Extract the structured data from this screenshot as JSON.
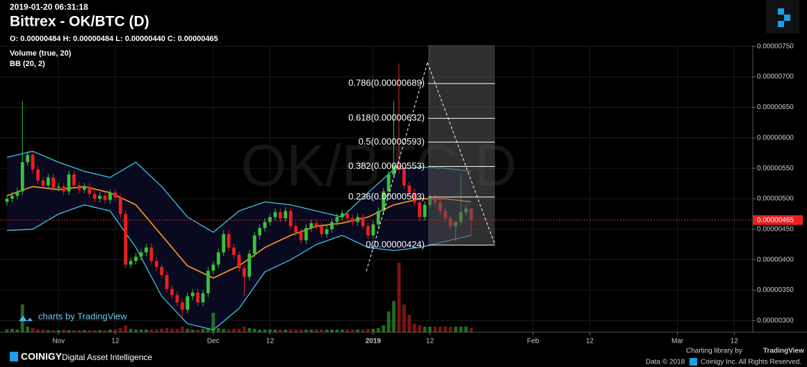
{
  "header": {
    "timestamp": "2019-01-20 06:31:18",
    "title": "Bittrex - OK/BTC (D)",
    "ohlc_text": "O: 0.00000484 H: 0.00000484 L: 0.00000440 C: 0.00000465",
    "indicators": [
      "Volume (true, 20)",
      "BB (20, 2)"
    ]
  },
  "watermark": "OK/BTC D",
  "tv_badge": "charts by TradingView",
  "footer": {
    "brand": "COINIGY",
    "tagline": "Digital Asset Intelligence",
    "library": "Charting library by",
    "library_brand": "TradingView",
    "copyright": "Data © 2018",
    "rights": "Coinigy Inc. All Rights Reserved."
  },
  "chart_data": {
    "type": "candlestick",
    "up_color": "#39c23a",
    "down_color": "#e8201f",
    "xlim": [
      -1.35,
      144.6
    ],
    "xticks": [
      {
        "value": 10,
        "label": "Nov"
      },
      {
        "value": 21,
        "label": "12"
      },
      {
        "value": 40,
        "label": "Dec"
      },
      {
        "value": 51,
        "label": "12"
      },
      {
        "value": 71,
        "label": "2019"
      },
      {
        "value": 82,
        "label": "12"
      },
      {
        "value": 102,
        "label": "Feb"
      },
      {
        "value": 113,
        "label": "12"
      },
      {
        "value": 130,
        "label": "Mar"
      },
      {
        "value": 141,
        "label": "12"
      }
    ],
    "ylim": [
      2.81e-06,
      7.52e-06
    ],
    "yticks": [
      {
        "value": 3e-06,
        "label": "0.00000300"
      },
      {
        "value": 3.5e-06,
        "label": "0.00000350"
      },
      {
        "value": 4e-06,
        "label": "0.00000400"
      },
      {
        "value": 4.5e-06,
        "label": "0.00000450"
      },
      {
        "value": 5e-06,
        "label": "0.00000500"
      },
      {
        "value": 5.5e-06,
        "label": "0.00000550"
      },
      {
        "value": 6e-06,
        "label": "0.00000600"
      },
      {
        "value": 6.5e-06,
        "label": "0.00000650"
      },
      {
        "value": 7e-06,
        "label": "0.00000700"
      },
      {
        "value": 7.5e-06,
        "label": "0.00000750"
      }
    ],
    "grid": true,
    "candles": {
      "open": [
        4.95e-06,
        5e-06,
        5.05e-06,
        5.12e-06,
        5.6e-06,
        5.72e-06,
        5.48e-06,
        5.3e-06,
        5.22e-06,
        5.35e-06,
        5.18e-06,
        5.2e-06,
        5.12e-06,
        5.4e-06,
        5.22e-06,
        5.15e-06,
        5.2e-06,
        5.08e-06,
        5e-06,
        5.05e-06,
        4.98e-06,
        5.1e-06,
        5.02e-06,
        4.75e-06,
        3.92e-06,
        3.98e-06,
        4.05e-06,
        4.12e-06,
        4.2e-06,
        3.98e-06,
        3.88e-06,
        3.75e-06,
        3.52e-06,
        3.42e-06,
        3.3e-06,
        3.18e-06,
        3.4e-06,
        3.46e-06,
        3.3e-06,
        3.45e-06,
        3.82e-06,
        3.92e-06,
        4.12e-06,
        4.42e-06,
        4.2e-06,
        4.08e-06,
        3.86e-06,
        3.72e-06,
        4.1e-06,
        4.4e-06,
        4.52e-06,
        4.62e-06,
        4.7e-06,
        4.78e-06,
        4.68e-06,
        4.8e-06,
        4.55e-06,
        4.45e-06,
        4.32e-06,
        4.52e-06,
        4.6e-06,
        4.55e-06,
        4.42e-06,
        4.5e-06,
        4.62e-06,
        4.7e-06,
        4.76e-06,
        4.68e-06,
        4.62e-06,
        4.7e-06,
        4.55e-06,
        4.4e-06,
        4.58e-06,
        4.8e-06,
        5.12e-06,
        5.4e-06,
        5.55e-06,
        5.48e-06,
        5.22e-06,
        5.1e-06,
        4.94e-06,
        4.7e-06,
        4.9e-06,
        5.02e-06,
        4.94e-06,
        4.8e-06,
        4.68e-06,
        4.55e-06,
        4.62e-06,
        4.78e-06,
        4.84e-06
      ],
      "high": [
        5.06e-06,
        5.11e-06,
        5.18e-06,
        6.6e-06,
        5.78e-06,
        5.78e-06,
        5.54e-06,
        5.36e-06,
        5.41e-06,
        5.41e-06,
        5.26e-06,
        5.26e-06,
        5.46e-06,
        5.46e-06,
        5.28e-06,
        5.26e-06,
        5.26e-06,
        5.14e-06,
        5.11e-06,
        5.11e-06,
        5.16e-06,
        5.16e-06,
        5.08e-06,
        4.81e-06,
        4.04e-06,
        4.11e-06,
        4.18e-06,
        4.26e-06,
        4.26e-06,
        4.04e-06,
        3.94e-06,
        3.81e-06,
        3.58e-06,
        3.48e-06,
        3.36e-06,
        3.46e-06,
        3.52e-06,
        3.52e-06,
        3.51e-06,
        3.88e-06,
        3.98e-06,
        4.18e-06,
        4.48e-06,
        4.48e-06,
        4.26e-06,
        4.14e-06,
        3.92e-06,
        4.16e-06,
        4.46e-06,
        4.58e-06,
        4.68e-06,
        4.76e-06,
        4.84e-06,
        4.84e-06,
        4.86e-06,
        4.86e-06,
        4.61e-06,
        4.51e-06,
        4.58e-06,
        4.66e-06,
        4.66e-06,
        4.61e-06,
        4.56e-06,
        4.68e-06,
        4.76e-06,
        4.82e-06,
        4.82e-06,
        4.74e-06,
        4.76e-06,
        4.76e-06,
        4.61e-06,
        4.64e-06,
        4.86e-06,
        5.18e-06,
        5.46e-06,
        6.6e-06,
        7.22e-06,
        5.54e-06,
        5.28e-06,
        5.16e-06,
        5e-06,
        4.96e-06,
        5.08e-06,
        5.08e-06,
        5e-06,
        4.86e-06,
        4.74e-06,
        4.61e-06,
        5.4e-06,
        4.9e-06,
        4.84e-06
      ],
      "low": [
        4.89e-06,
        4.94e-06,
        4.99e-06,
        5.06e-06,
        5.54e-06,
        5.42e-06,
        5.24e-06,
        5.16e-06,
        5.16e-06,
        5.12e-06,
        5.12e-06,
        5.06e-06,
        5.06e-06,
        5.16e-06,
        5.09e-06,
        5.09e-06,
        5.02e-06,
        4.94e-06,
        4.94e-06,
        4.92e-06,
        4.92e-06,
        4.96e-06,
        4.69e-06,
        3.86e-06,
        3.86e-06,
        3.92e-06,
        3.99e-06,
        4.06e-06,
        3.92e-06,
        3.82e-06,
        3.69e-06,
        3.46e-06,
        3.36e-06,
        3.24e-06,
        3.05e-06,
        3.12e-06,
        3.34e-06,
        3.24e-06,
        3.24e-06,
        3.39e-06,
        3.76e-06,
        3.86e-06,
        4.06e-06,
        4.14e-06,
        4.02e-06,
        3.8e-06,
        3.4e-06,
        3.66e-06,
        4.04e-06,
        4.34e-06,
        4.46e-06,
        4.56e-06,
        4.64e-06,
        4.62e-06,
        4.62e-06,
        4.49e-06,
        4.39e-06,
        4.26e-06,
        4.26e-06,
        4.46e-06,
        4.49e-06,
        4.36e-06,
        4.36e-06,
        4.44e-06,
        4.56e-06,
        4.64e-06,
        4.62e-06,
        4.56e-06,
        4.56e-06,
        4.49e-06,
        4.34e-06,
        4.34e-06,
        4.52e-06,
        4.74e-06,
        5.06e-06,
        5.34e-06,
        5.42e-06,
        5.16e-06,
        5.04e-06,
        4.88e-06,
        4.64e-06,
        4.64e-06,
        4.84e-06,
        4.88e-06,
        4.74e-06,
        4.62e-06,
        4.49e-06,
        4.3e-06,
        4.56e-06,
        4.72e-06,
        4.4e-06
      ],
      "close": [
        5e-06,
        5.05e-06,
        5.12e-06,
        5.6e-06,
        5.72e-06,
        5.48e-06,
        5.3e-06,
        5.22e-06,
        5.35e-06,
        5.18e-06,
        5.2e-06,
        5.12e-06,
        5.4e-06,
        5.22e-06,
        5.15e-06,
        5.2e-06,
        5.08e-06,
        5e-06,
        5.05e-06,
        4.98e-06,
        5.1e-06,
        5.02e-06,
        4.75e-06,
        3.92e-06,
        3.98e-06,
        4.05e-06,
        4.12e-06,
        4.2e-06,
        3.98e-06,
        3.88e-06,
        3.75e-06,
        3.52e-06,
        3.42e-06,
        3.3e-06,
        3.18e-06,
        3.4e-06,
        3.46e-06,
        3.3e-06,
        3.45e-06,
        3.82e-06,
        3.92e-06,
        4.12e-06,
        4.42e-06,
        4.2e-06,
        4.08e-06,
        3.86e-06,
        3.72e-06,
        4.1e-06,
        4.4e-06,
        4.52e-06,
        4.62e-06,
        4.7e-06,
        4.78e-06,
        4.68e-06,
        4.8e-06,
        4.55e-06,
        4.45e-06,
        4.32e-06,
        4.52e-06,
        4.6e-06,
        4.55e-06,
        4.42e-06,
        4.5e-06,
        4.62e-06,
        4.7e-06,
        4.76e-06,
        4.68e-06,
        4.62e-06,
        4.7e-06,
        4.55e-06,
        4.4e-06,
        4.58e-06,
        4.8e-06,
        5.12e-06,
        5.4e-06,
        5.55e-06,
        5.48e-06,
        5.22e-06,
        5.1e-06,
        4.94e-06,
        4.7e-06,
        4.9e-06,
        5.02e-06,
        4.94e-06,
        4.8e-06,
        4.68e-06,
        4.55e-06,
        4.62e-06,
        4.78e-06,
        4.84e-06,
        4.65e-06
      ],
      "volume": [
        4,
        5,
        4,
        40,
        8,
        6,
        4,
        4,
        3,
        3,
        3,
        4,
        3,
        3,
        3,
        3,
        3,
        3,
        3,
        3,
        4,
        4,
        6,
        10,
        5,
        4,
        4,
        4,
        4,
        4,
        5,
        6,
        5,
        5,
        8,
        5,
        4,
        4,
        5,
        6,
        28,
        6,
        5,
        4,
        5,
        5,
        8,
        6,
        5,
        4,
        4,
        4,
        4,
        4,
        4,
        4,
        4,
        4,
        4,
        4,
        4,
        4,
        4,
        4,
        4,
        4,
        4,
        4,
        4,
        4,
        5,
        5,
        6,
        10,
        30,
        45,
        100,
        40,
        25,
        12,
        10,
        8,
        8,
        8,
        8,
        8,
        8,
        8,
        8,
        8,
        6
      ]
    },
    "volume_ylim": [
      0,
      100
    ],
    "bollinger": {
      "x": [
        0,
        5,
        10,
        15,
        20,
        25,
        30,
        35,
        40,
        45,
        50,
        55,
        60,
        65,
        70,
        75,
        80,
        85,
        90
      ],
      "upper": [
        5.68e-06,
        5.78e-06,
        5.6e-06,
        5.45e-06,
        5.35e-06,
        5.6e-06,
        5.2e-06,
        4.7e-06,
        4.45e-06,
        4.8e-06,
        4.95e-06,
        4.9e-06,
        4.8e-06,
        4.7e-06,
        5.1e-06,
        5.48e-06,
        5.52e-06,
        5.5e-06,
        5.45e-06
      ],
      "middle": [
        5.05e-06,
        5.2e-06,
        5.15e-06,
        5.2e-06,
        5.1e-06,
        4.9e-06,
        4.4e-06,
        3.9e-06,
        3.7e-06,
        3.9e-06,
        4.2e-06,
        4.4e-06,
        4.55e-06,
        4.6e-06,
        4.7e-06,
        4.9e-06,
        5e-06,
        5e-06,
        4.95e-06
      ],
      "lower": [
        4.48e-06,
        4.5e-06,
        4.75e-06,
        4.9e-06,
        4.8e-06,
        4.2e-06,
        3.4e-06,
        2.95e-06,
        2.85e-06,
        3.2e-06,
        3.8e-06,
        4e-06,
        4.25e-06,
        4.4e-06,
        4.2e-06,
        4.15e-06,
        4.2e-06,
        4.3e-06,
        4.4e-06
      ],
      "band_color": "#3ec6e0",
      "middle_color": "#f0901e"
    },
    "fib_levels": [
      {
        "value": 6.89e-06,
        "label": "0.786(0.00000689)"
      },
      {
        "value": 6.32e-06,
        "label": "0.618(0.00000632)"
      },
      {
        "value": 5.93e-06,
        "label": "0.5(0.00000593)"
      },
      {
        "value": 5.53e-06,
        "label": "0.382(0.00000553)"
      },
      {
        "value": 5.03e-06,
        "label": "0.236(0.00000503)"
      },
      {
        "value": 4.24e-06,
        "label": "0(0.00000424)"
      }
    ],
    "last_price": {
      "value": 4.65e-06,
      "label": "0.00000465"
    }
  }
}
